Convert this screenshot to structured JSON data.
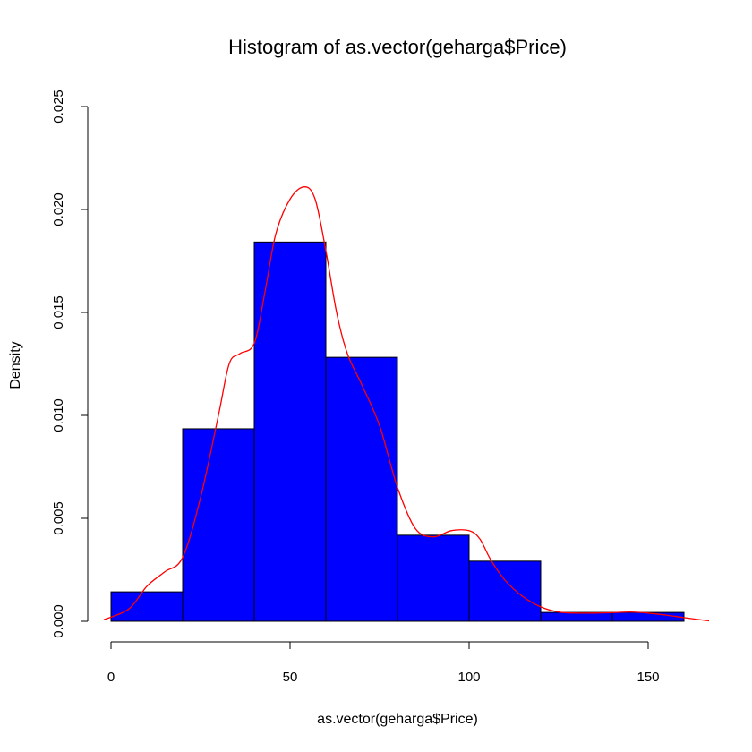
{
  "chart_data": {
    "type": "bar",
    "subtype": "histogram",
    "title": "Histogram of as.vector(geharga$Price)",
    "xlabel": "as.vector(geharga$Price)",
    "ylabel": "Density",
    "bins": [
      {
        "from": 0,
        "to": 20,
        "density": 0.00143
      },
      {
        "from": 20,
        "to": 40,
        "density": 0.00935
      },
      {
        "from": 40,
        "to": 60,
        "density": 0.01842
      },
      {
        "from": 60,
        "to": 80,
        "density": 0.01282
      },
      {
        "from": 80,
        "to": 100,
        "density": 0.00418
      },
      {
        "from": 100,
        "to": 120,
        "density": 0.00292
      },
      {
        "from": 120,
        "to": 140,
        "density": 0.00043
      },
      {
        "from": 140,
        "to": 160,
        "density": 0.00043
      }
    ],
    "density_curve": {
      "x": [
        -2,
        5,
        10,
        15,
        20,
        25,
        30,
        33,
        36,
        40,
        43,
        46,
        50,
        54,
        57,
        60,
        63,
        66,
        70,
        75,
        80,
        85,
        90,
        95,
        100,
        103,
        106,
        110,
        115,
        120,
        125,
        130,
        135,
        140,
        145,
        150,
        155,
        160,
        167
      ],
      "y": [
        8e-05,
        0.0006,
        0.0017,
        0.0024,
        0.0031,
        0.006,
        0.01,
        0.0125,
        0.013,
        0.0135,
        0.016,
        0.0188,
        0.0205,
        0.0211,
        0.0205,
        0.018,
        0.015,
        0.013,
        0.0115,
        0.0095,
        0.0065,
        0.0045,
        0.0041,
        0.0044,
        0.0044,
        0.004,
        0.003,
        0.002,
        0.0012,
        0.0007,
        0.00045,
        0.0004,
        0.0004,
        0.00042,
        0.00045,
        0.0004,
        0.0003,
        0.00018,
        2e-05
      ]
    },
    "xlim": [
      0,
      150
    ],
    "ylim": [
      0,
      0.025
    ],
    "x_ticks": [
      0,
      50,
      100,
      150
    ],
    "x_tick_labels": [
      "0",
      "50",
      "100",
      "150"
    ],
    "y_ticks": [
      0,
      0.005,
      0.01,
      0.015,
      0.02,
      0.025
    ],
    "y_tick_labels": [
      "0.000",
      "0.005",
      "0.010",
      "0.015",
      "0.020",
      "0.025"
    ],
    "bar_color": "#0000ff",
    "curve_color": "#ff0000",
    "grid": false,
    "legend": "none"
  }
}
